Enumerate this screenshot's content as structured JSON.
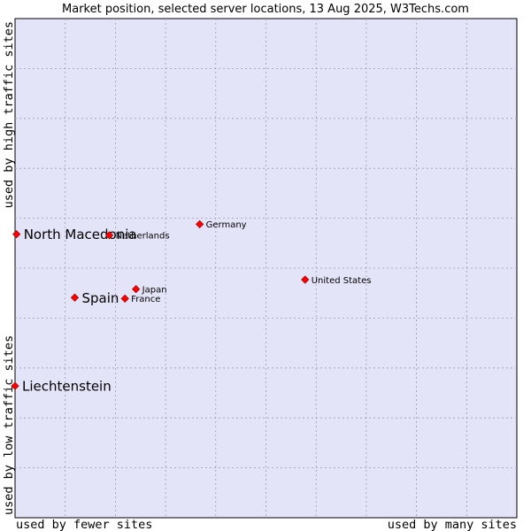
{
  "chart_data": {
    "type": "scatter",
    "title": "Market position, selected server locations, 13 Aug 2025, W3Techs.com",
    "xlabel_left": "used by fewer sites",
    "xlabel_right": "used by many sites",
    "ylabel_bottom": "used by low traffic sites",
    "ylabel_top": "used by high traffic sites",
    "xlim": [
      0,
      100
    ],
    "ylim": [
      0,
      100
    ],
    "grid": true,
    "marker_color": "#ff0000",
    "background_color": "#e4e4f8",
    "points": [
      {
        "name": "North Macedonia",
        "x": 0.3,
        "y": 56.8,
        "emphasis": true
      },
      {
        "name": "Netherlands",
        "x": 18.8,
        "y": 56.6,
        "emphasis": false
      },
      {
        "name": "Germany",
        "x": 36.8,
        "y": 58.8,
        "emphasis": false
      },
      {
        "name": "United States",
        "x": 57.8,
        "y": 47.7,
        "emphasis": false
      },
      {
        "name": "Spain",
        "x": 11.9,
        "y": 44.1,
        "emphasis": true
      },
      {
        "name": "Japan",
        "x": 24.1,
        "y": 45.8,
        "emphasis": false
      },
      {
        "name": "France",
        "x": 21.9,
        "y": 43.9,
        "emphasis": false
      },
      {
        "name": "Liechtenstein",
        "x": 0.0,
        "y": 26.4,
        "emphasis": true
      }
    ]
  }
}
